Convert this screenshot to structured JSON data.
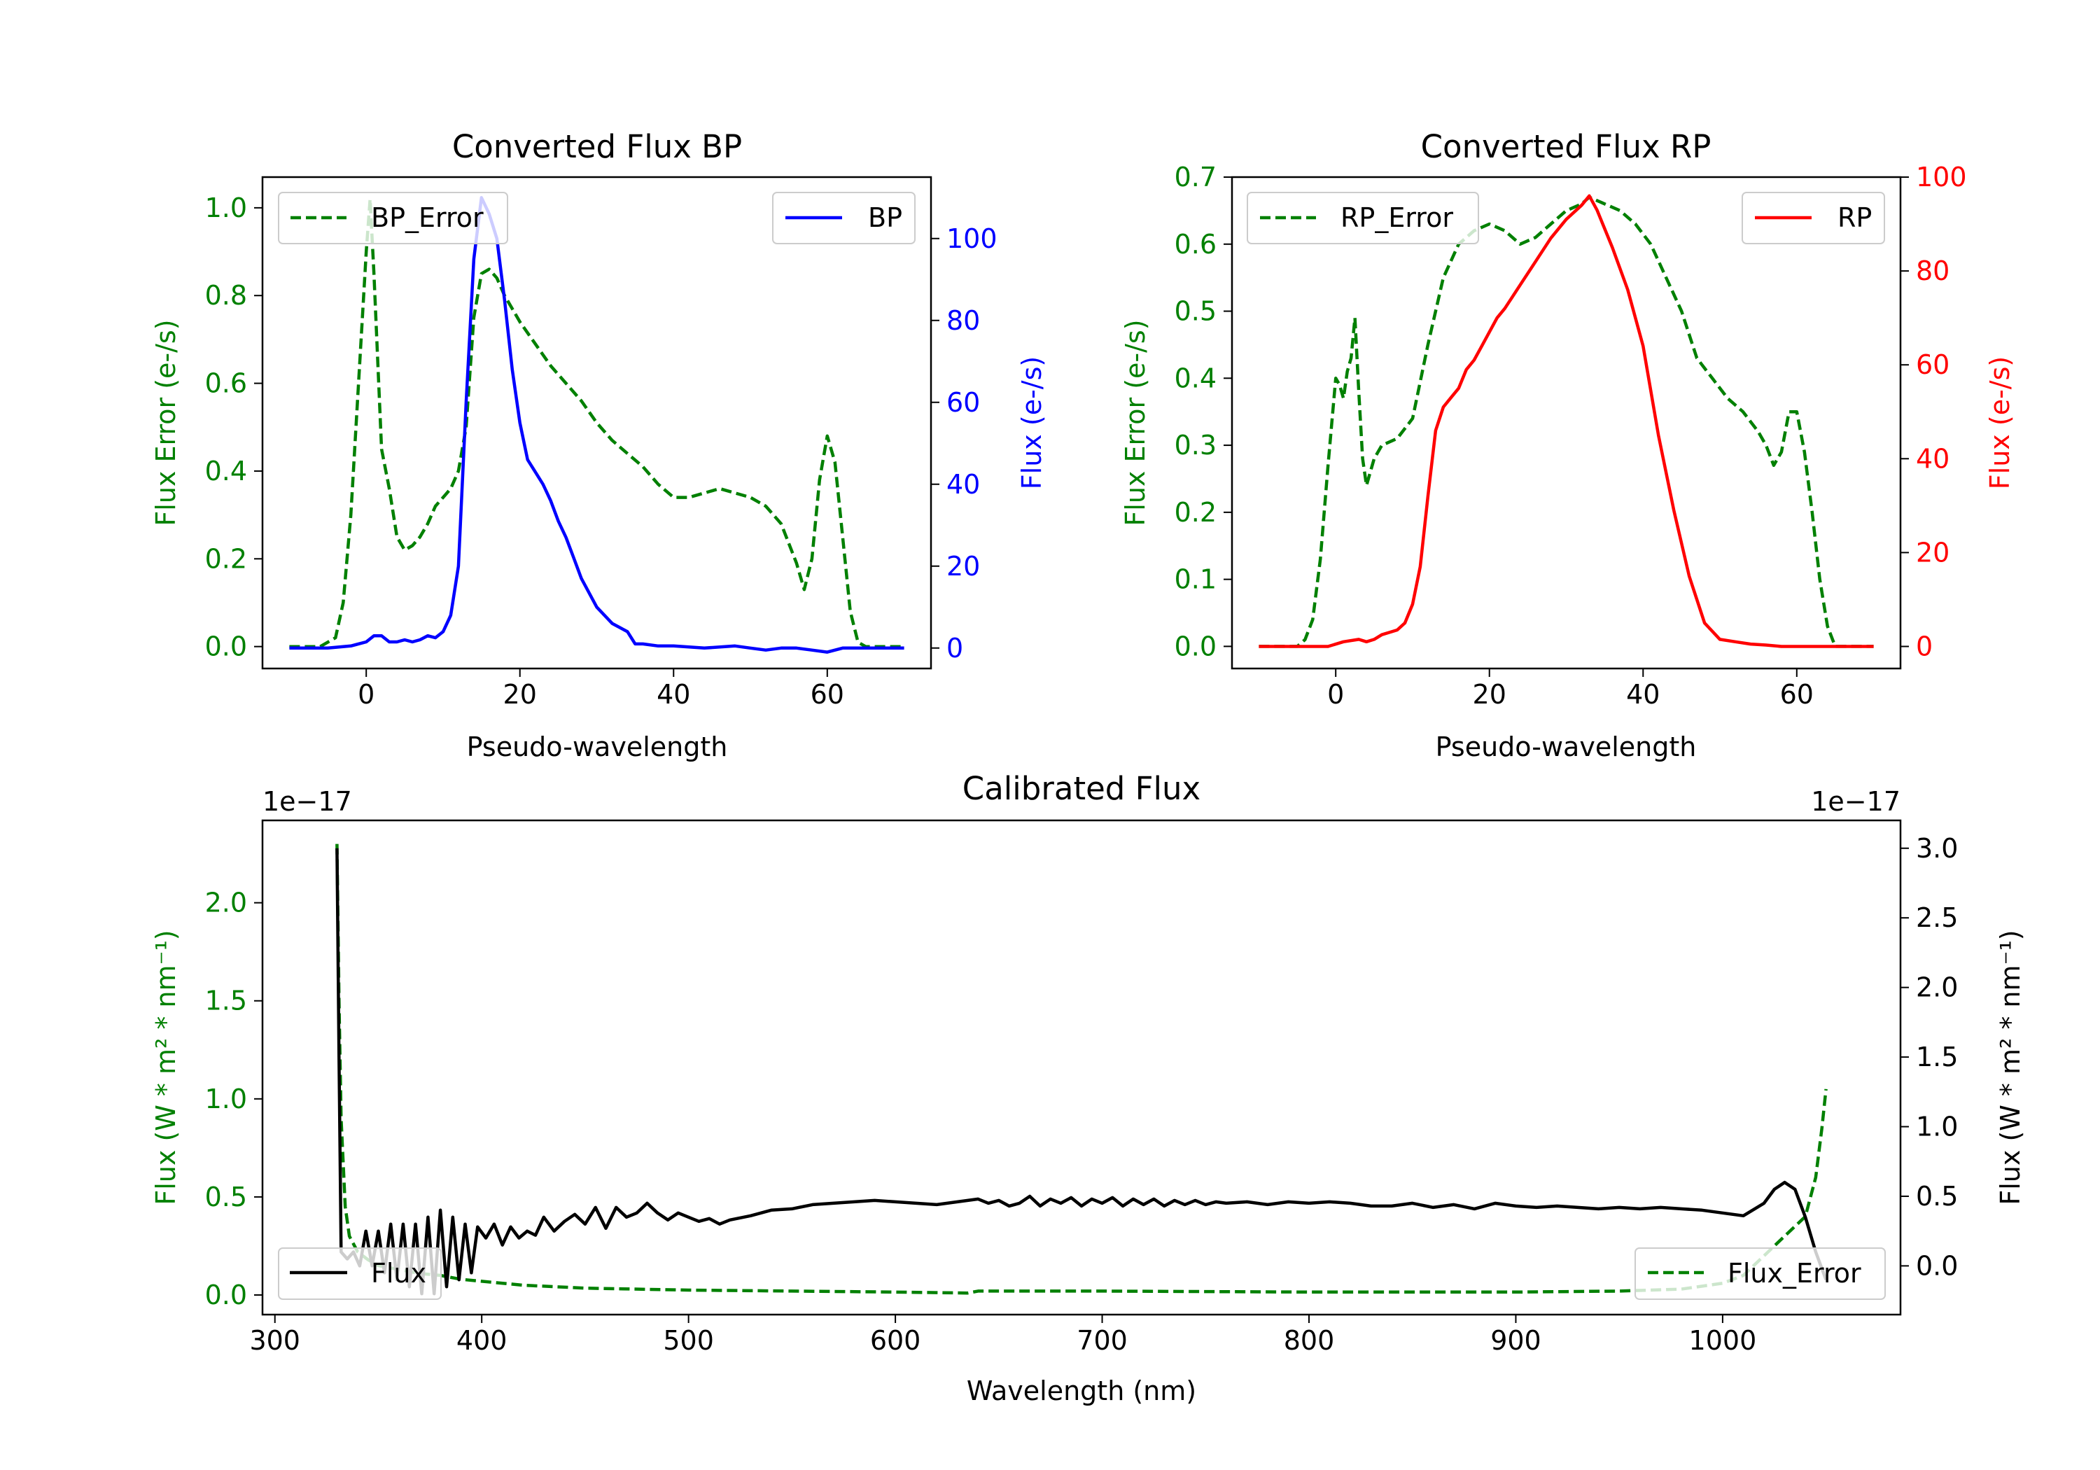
{
  "colors": {
    "error": "#008000",
    "bp": "#0000ff",
    "rp": "#ff0000",
    "flux": "#000000",
    "axis": "#000000"
  },
  "chart_data": [
    {
      "id": "bp",
      "type": "line",
      "title": "Converted Flux BP",
      "xlabel": "Pseudo-wavelength",
      "ylabel_left": "Flux Error (e-/s)",
      "ylabel_right": "Flux (e-/s)",
      "xlim": [
        -13.5,
        73.5
      ],
      "ylim_left": [
        -0.05,
        1.07
      ],
      "ylim_right": [
        -5,
        115
      ],
      "xticks": [
        0,
        20,
        40,
        60
      ],
      "yticks_left": [
        0.0,
        0.2,
        0.4,
        0.6,
        0.8,
        1.0
      ],
      "yticks_right": [
        0,
        20,
        40,
        60,
        80,
        100
      ],
      "ytick_labels_left": [
        "0.0",
        "0.2",
        "0.4",
        "0.6",
        "0.8",
        "1.0"
      ],
      "ytick_labels_right": [
        "0",
        "20",
        "40",
        "60",
        "80",
        "100"
      ],
      "legend_left": "BP_Error",
      "legend_right": "BP",
      "series": [
        {
          "name": "BP_Error",
          "axis": "left",
          "style": "dashed",
          "color": "error",
          "x": [
            -10,
            -6,
            -4,
            -3,
            -2,
            -1,
            0,
            0.5,
            1,
            2,
            3,
            4,
            5,
            6,
            7,
            8,
            9,
            10,
            11,
            12,
            13,
            14,
            15,
            16,
            17,
            18,
            19,
            20,
            22,
            24,
            26,
            28,
            30,
            32,
            34,
            36,
            38,
            40,
            42,
            44,
            46,
            48,
            50,
            52,
            54,
            56,
            57,
            58,
            59,
            60,
            61,
            62,
            63,
            64,
            65,
            66,
            68,
            70
          ],
          "y": [
            0.0,
            0.0,
            0.02,
            0.1,
            0.3,
            0.6,
            0.9,
            1.02,
            0.85,
            0.45,
            0.36,
            0.25,
            0.22,
            0.23,
            0.25,
            0.28,
            0.32,
            0.34,
            0.36,
            0.4,
            0.5,
            0.75,
            0.85,
            0.86,
            0.84,
            0.8,
            0.77,
            0.74,
            0.69,
            0.64,
            0.6,
            0.56,
            0.51,
            0.47,
            0.44,
            0.41,
            0.37,
            0.34,
            0.34,
            0.35,
            0.36,
            0.35,
            0.34,
            0.32,
            0.28,
            0.19,
            0.13,
            0.2,
            0.38,
            0.48,
            0.42,
            0.25,
            0.08,
            0.01,
            0.0,
            0.0,
            0.0,
            0.0
          ]
        },
        {
          "name": "BP",
          "axis": "right",
          "style": "solid",
          "color": "bp",
          "x": [
            -10,
            -5,
            -2,
            0,
            1,
            2,
            3,
            4,
            5,
            6,
            7,
            8,
            9,
            10,
            11,
            12,
            13,
            14,
            15,
            16,
            17,
            18,
            19,
            20,
            21,
            22,
            23,
            24,
            25,
            26,
            27,
            28,
            30,
            32,
            34,
            35,
            36,
            38,
            40,
            44,
            48,
            50,
            52,
            54,
            56,
            58,
            60,
            62,
            64,
            66,
            68,
            70
          ],
          "y": [
            0,
            0,
            0.5,
            1.5,
            3,
            3,
            1.5,
            1.5,
            2,
            1.5,
            2,
            3,
            2.5,
            4,
            8,
            20,
            60,
            95,
            110,
            106,
            100,
            85,
            68,
            55,
            46,
            43,
            40,
            36,
            31,
            27,
            22,
            17,
            10,
            6,
            4,
            1,
            1,
            0.5,
            0.5,
            0,
            0.5,
            0,
            -0.5,
            0,
            0,
            -0.5,
            -1,
            0,
            0,
            0,
            0,
            0
          ]
        }
      ]
    },
    {
      "id": "rp",
      "type": "line",
      "title": "Converted Flux RP",
      "xlabel": "Pseudo-wavelength",
      "ylabel_left": "Flux Error (e-/s)",
      "ylabel_right": "Flux (e-/s)",
      "xlim": [
        -13.5,
        73.5
      ],
      "ylim_left": [
        -0.033,
        0.7
      ],
      "ylim_right": [
        -4.7,
        100
      ],
      "xticks": [
        0,
        20,
        40,
        60
      ],
      "yticks_left": [
        0.0,
        0.1,
        0.2,
        0.3,
        0.4,
        0.5,
        0.6,
        0.7
      ],
      "yticks_right": [
        0,
        20,
        40,
        60,
        80,
        100
      ],
      "ytick_labels_left": [
        "0.0",
        "0.1",
        "0.2",
        "0.3",
        "0.4",
        "0.5",
        "0.6",
        "0.7"
      ],
      "ytick_labels_right": [
        "0",
        "20",
        "40",
        "60",
        "80",
        "100"
      ],
      "legend_left": "RP_Error",
      "legend_right": "RP",
      "series": [
        {
          "name": "RP_Error",
          "axis": "left",
          "style": "dashed",
          "color": "error",
          "x": [
            -10,
            -5,
            -4,
            -3,
            -2,
            -1,
            0,
            0.5,
            1,
            1.5,
            2,
            2.5,
            3,
            3.5,
            4,
            5,
            6,
            8,
            10,
            12,
            14,
            16,
            18,
            20,
            22,
            24,
            26,
            28,
            30,
            32,
            33,
            35,
            37,
            39,
            41,
            43,
            45,
            47,
            49,
            51,
            53,
            55,
            56,
            57,
            58,
            59,
            60,
            61,
            62,
            63,
            64,
            65,
            67,
            70
          ],
          "y": [
            0.0,
            0.0,
            0.01,
            0.04,
            0.13,
            0.27,
            0.4,
            0.39,
            0.37,
            0.41,
            0.43,
            0.49,
            0.38,
            0.28,
            0.24,
            0.28,
            0.3,
            0.31,
            0.34,
            0.45,
            0.55,
            0.6,
            0.62,
            0.63,
            0.62,
            0.6,
            0.61,
            0.63,
            0.65,
            0.66,
            0.67,
            0.66,
            0.65,
            0.63,
            0.6,
            0.55,
            0.5,
            0.43,
            0.4,
            0.37,
            0.35,
            0.32,
            0.3,
            0.27,
            0.29,
            0.35,
            0.35,
            0.29,
            0.2,
            0.1,
            0.03,
            0.0,
            0.0,
            0.0
          ]
        },
        {
          "name": "RP",
          "axis": "right",
          "style": "solid",
          "color": "rp",
          "x": [
            -10,
            -5,
            -1,
            1,
            3,
            4,
            5,
            6,
            7,
            8,
            9,
            10,
            11,
            12,
            13,
            14,
            15,
            16,
            17,
            18,
            19,
            20,
            21,
            22,
            24,
            26,
            28,
            30,
            32,
            33,
            34,
            36,
            38,
            40,
            42,
            44,
            46,
            48,
            50,
            52,
            54,
            56,
            58,
            60,
            62,
            64,
            66,
            68,
            70
          ],
          "y": [
            0,
            0,
            0,
            1,
            1.5,
            1,
            1.5,
            2.5,
            3,
            3.5,
            5,
            9,
            17,
            32,
            46,
            51,
            53,
            55,
            59,
            61,
            64,
            67,
            70,
            72,
            77,
            82,
            87,
            91,
            94,
            96,
            93,
            85,
            76,
            64,
            45,
            29,
            15,
            5,
            1.5,
            1,
            0.5,
            0.3,
            0,
            0,
            0,
            0,
            0,
            0,
            0
          ]
        }
      ]
    },
    {
      "id": "cal",
      "type": "line",
      "title": "Calibrated Flux",
      "xlabel": "Wavelength (nm)",
      "ylabel_left": "Flux (W * m² * nm⁻¹)",
      "ylabel_right": "Flux (W * m² * nm⁻¹)",
      "offset_left": "1e−17",
      "offset_right": "1e−17",
      "xlim": [
        294,
        1086
      ],
      "ylim_left": [
        -0.1,
        2.42
      ],
      "ylim_right": [
        -0.35,
        3.2
      ],
      "xticks": [
        300,
        400,
        500,
        600,
        700,
        800,
        900,
        1000
      ],
      "yticks_left": [
        0.0,
        0.5,
        1.0,
        1.5,
        2.0
      ],
      "yticks_right": [
        0.0,
        0.5,
        1.0,
        1.5,
        2.0,
        2.5,
        3.0
      ],
      "ytick_labels_left": [
        "0.0",
        "0.5",
        "1.0",
        "1.5",
        "2.0"
      ],
      "ytick_labels_right": [
        "0.0",
        "0.5",
        "1.0",
        "1.5",
        "2.0",
        "2.5",
        "3.0"
      ],
      "legend_left": "Flux",
      "legend_right": "Flux_Error",
      "series": [
        {
          "name": "Flux_Error",
          "axis": "left",
          "style": "dashed",
          "color": "error",
          "x": [
            330,
            331,
            332,
            334,
            336,
            340,
            345,
            350,
            360,
            370,
            380,
            390,
            400,
            420,
            450,
            500,
            550,
            600,
            635,
            640,
            645,
            700,
            800,
            900,
            950,
            980,
            1000,
            1010,
            1020,
            1030,
            1035,
            1040,
            1045,
            1048,
            1050
          ],
          "y": [
            2.3,
            1.5,
            0.9,
            0.45,
            0.3,
            0.22,
            0.18,
            0.15,
            0.13,
            0.11,
            0.1,
            0.08,
            0.07,
            0.05,
            0.035,
            0.025,
            0.02,
            0.015,
            0.01,
            0.02,
            0.02,
            0.02,
            0.015,
            0.015,
            0.02,
            0.03,
            0.06,
            0.1,
            0.2,
            0.3,
            0.35,
            0.4,
            0.6,
            0.85,
            1.05
          ]
        },
        {
          "name": "Flux",
          "axis": "right",
          "style": "solid",
          "color": "flux",
          "x": [
            330,
            331,
            332,
            335,
            338,
            341,
            344,
            347,
            350,
            353,
            356,
            359,
            362,
            365,
            368,
            371,
            374,
            377,
            380,
            383,
            386,
            389,
            392,
            395,
            398,
            402,
            406,
            410,
            414,
            418,
            422,
            426,
            430,
            435,
            440,
            445,
            450,
            455,
            460,
            465,
            470,
            475,
            480,
            485,
            490,
            495,
            500,
            505,
            510,
            515,
            520,
            530,
            540,
            550,
            560,
            570,
            580,
            590,
            600,
            610,
            620,
            630,
            640,
            645,
            650,
            655,
            660,
            665,
            670,
            675,
            680,
            685,
            690,
            695,
            700,
            705,
            710,
            715,
            720,
            725,
            730,
            735,
            740,
            745,
            750,
            755,
            760,
            770,
            780,
            790,
            800,
            810,
            820,
            830,
            840,
            850,
            860,
            870,
            880,
            890,
            900,
            910,
            920,
            930,
            940,
            950,
            960,
            970,
            980,
            990,
            1000,
            1010,
            1020,
            1025,
            1030,
            1035,
            1040,
            1045,
            1050
          ],
          "y": [
            3.0,
            1.5,
            0.1,
            0.05,
            0.1,
            0.0,
            0.25,
            0.0,
            0.25,
            -0.05,
            0.3,
            -0.1,
            0.3,
            -0.15,
            0.3,
            -0.2,
            0.35,
            -0.2,
            0.4,
            -0.15,
            0.35,
            -0.1,
            0.3,
            -0.05,
            0.28,
            0.2,
            0.3,
            0.15,
            0.28,
            0.2,
            0.25,
            0.22,
            0.35,
            0.25,
            0.32,
            0.37,
            0.3,
            0.42,
            0.27,
            0.42,
            0.35,
            0.38,
            0.45,
            0.38,
            0.33,
            0.38,
            0.35,
            0.32,
            0.34,
            0.3,
            0.33,
            0.36,
            0.4,
            0.41,
            0.44,
            0.45,
            0.46,
            0.47,
            0.46,
            0.45,
            0.44,
            0.46,
            0.48,
            0.45,
            0.47,
            0.43,
            0.45,
            0.5,
            0.43,
            0.48,
            0.45,
            0.49,
            0.43,
            0.48,
            0.45,
            0.49,
            0.43,
            0.48,
            0.44,
            0.48,
            0.43,
            0.47,
            0.44,
            0.47,
            0.44,
            0.46,
            0.45,
            0.46,
            0.44,
            0.46,
            0.45,
            0.46,
            0.45,
            0.43,
            0.43,
            0.45,
            0.42,
            0.44,
            0.41,
            0.45,
            0.43,
            0.42,
            0.43,
            0.42,
            0.41,
            0.42,
            0.41,
            0.42,
            0.41,
            0.4,
            0.38,
            0.36,
            0.45,
            0.55,
            0.6,
            0.55,
            0.35,
            0.1,
            -0.1
          ]
        }
      ]
    }
  ]
}
